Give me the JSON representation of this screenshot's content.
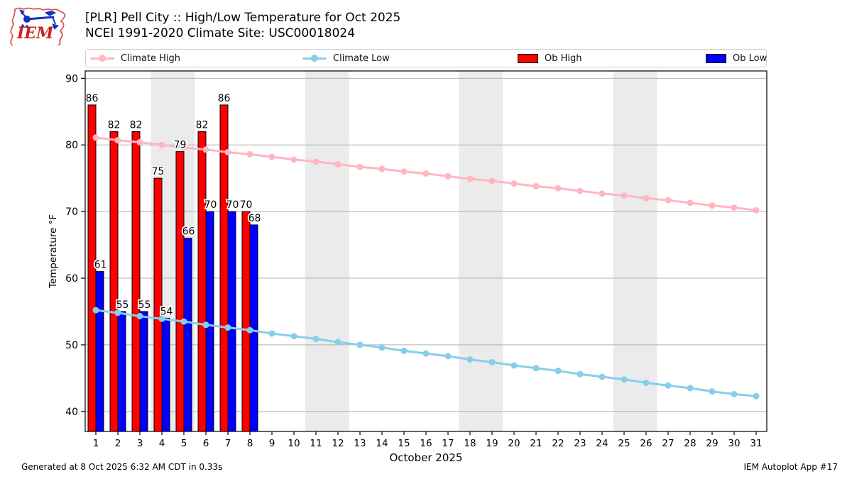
{
  "header": {
    "logo_text": "IEM",
    "title_line1": "[PLR] Pell City :: High/Low Temperature for Oct 2025",
    "title_line2": "NCEI 1991-2020 Climate Site: USC00018024"
  },
  "legend": {
    "items": [
      {
        "label": "Climate High",
        "slug": "climate-high",
        "type": "line",
        "color": "#ffb6c1"
      },
      {
        "label": "Climate Low",
        "slug": "climate-low",
        "type": "line",
        "color": "#87ceeb"
      },
      {
        "label": "Ob High",
        "slug": "ob-high",
        "type": "rect",
        "color": "#ff0000"
      },
      {
        "label": "Ob Low",
        "slug": "ob-low",
        "type": "rect",
        "color": "#0000ff"
      }
    ]
  },
  "chart_data": {
    "type": "bar",
    "subtype": "grouped bars (observed) + lines with markers (climatology)",
    "title": "[PLR] Pell City :: High/Low Temperature for Oct 2025",
    "subtitle": "NCEI 1991-2020 Climate Site: USC00018024",
    "xlabel": "October 2025",
    "ylabel": "Temperature °F",
    "ylim": [
      37,
      91.1
    ],
    "yticks": [
      40,
      50,
      60,
      70,
      80,
      90
    ],
    "x": [
      1,
      2,
      3,
      4,
      5,
      6,
      7,
      8,
      9,
      10,
      11,
      12,
      13,
      14,
      15,
      16,
      17,
      18,
      19,
      20,
      21,
      22,
      23,
      24,
      25,
      26,
      27,
      28,
      29,
      30,
      31
    ],
    "grid": "horizontal",
    "legend_position": "top",
    "weekend_shading_day_ranges": [
      [
        3.5,
        5.5
      ],
      [
        10.5,
        12.5
      ],
      [
        17.5,
        19.5
      ],
      [
        24.5,
        26.5
      ]
    ],
    "colors": {
      "band": "#ebebeb",
      "grid": "#b0b0b0",
      "axis": "#000000",
      "label_halo": "#ffffff"
    },
    "series": [
      {
        "name": "Climate High",
        "type": "line",
        "color": "#ffb6c1",
        "values": [
          81.1,
          80.7,
          80.4,
          80.0,
          79.6,
          79.3,
          78.9,
          78.6,
          78.2,
          77.8,
          77.5,
          77.1,
          76.7,
          76.4,
          76.0,
          75.7,
          75.3,
          74.9,
          74.6,
          74.2,
          73.8,
          73.5,
          73.1,
          72.7,
          72.4,
          72.0,
          71.7,
          71.3,
          70.9,
          70.6,
          70.2
        ]
      },
      {
        "name": "Climate Low",
        "type": "line",
        "color": "#87ceeb",
        "values": [
          55.2,
          54.8,
          54.3,
          53.9,
          53.5,
          53.0,
          52.6,
          52.2,
          51.7,
          51.3,
          50.9,
          50.4,
          50.0,
          49.6,
          49.1,
          48.7,
          48.3,
          47.8,
          47.4,
          46.9,
          46.5,
          46.1,
          45.6,
          45.2,
          44.8,
          44.3,
          43.9,
          43.5,
          43.0,
          42.6,
          42.3
        ]
      },
      {
        "name": "Ob High",
        "type": "bar",
        "color": "#ff0000",
        "labeled": true,
        "values": [
          86,
          82,
          82,
          75,
          79,
          82,
          86,
          70,
          null,
          null,
          null,
          null,
          null,
          null,
          null,
          null,
          null,
          null,
          null,
          null,
          null,
          null,
          null,
          null,
          null,
          null,
          null,
          null,
          null,
          null,
          null
        ]
      },
      {
        "name": "Ob Low",
        "type": "bar",
        "color": "#0000ff",
        "labeled": true,
        "values": [
          61,
          55,
          55,
          54,
          66,
          70,
          70,
          68,
          null,
          null,
          null,
          null,
          null,
          null,
          null,
          null,
          null,
          null,
          null,
          null,
          null,
          null,
          null,
          null,
          null,
          null,
          null,
          null,
          null,
          null,
          null
        ]
      }
    ]
  },
  "footer": {
    "left": "Generated at 8 Oct 2025 6:32 AM CDT in 0.33s",
    "right": "IEM Autoplot App #17"
  }
}
